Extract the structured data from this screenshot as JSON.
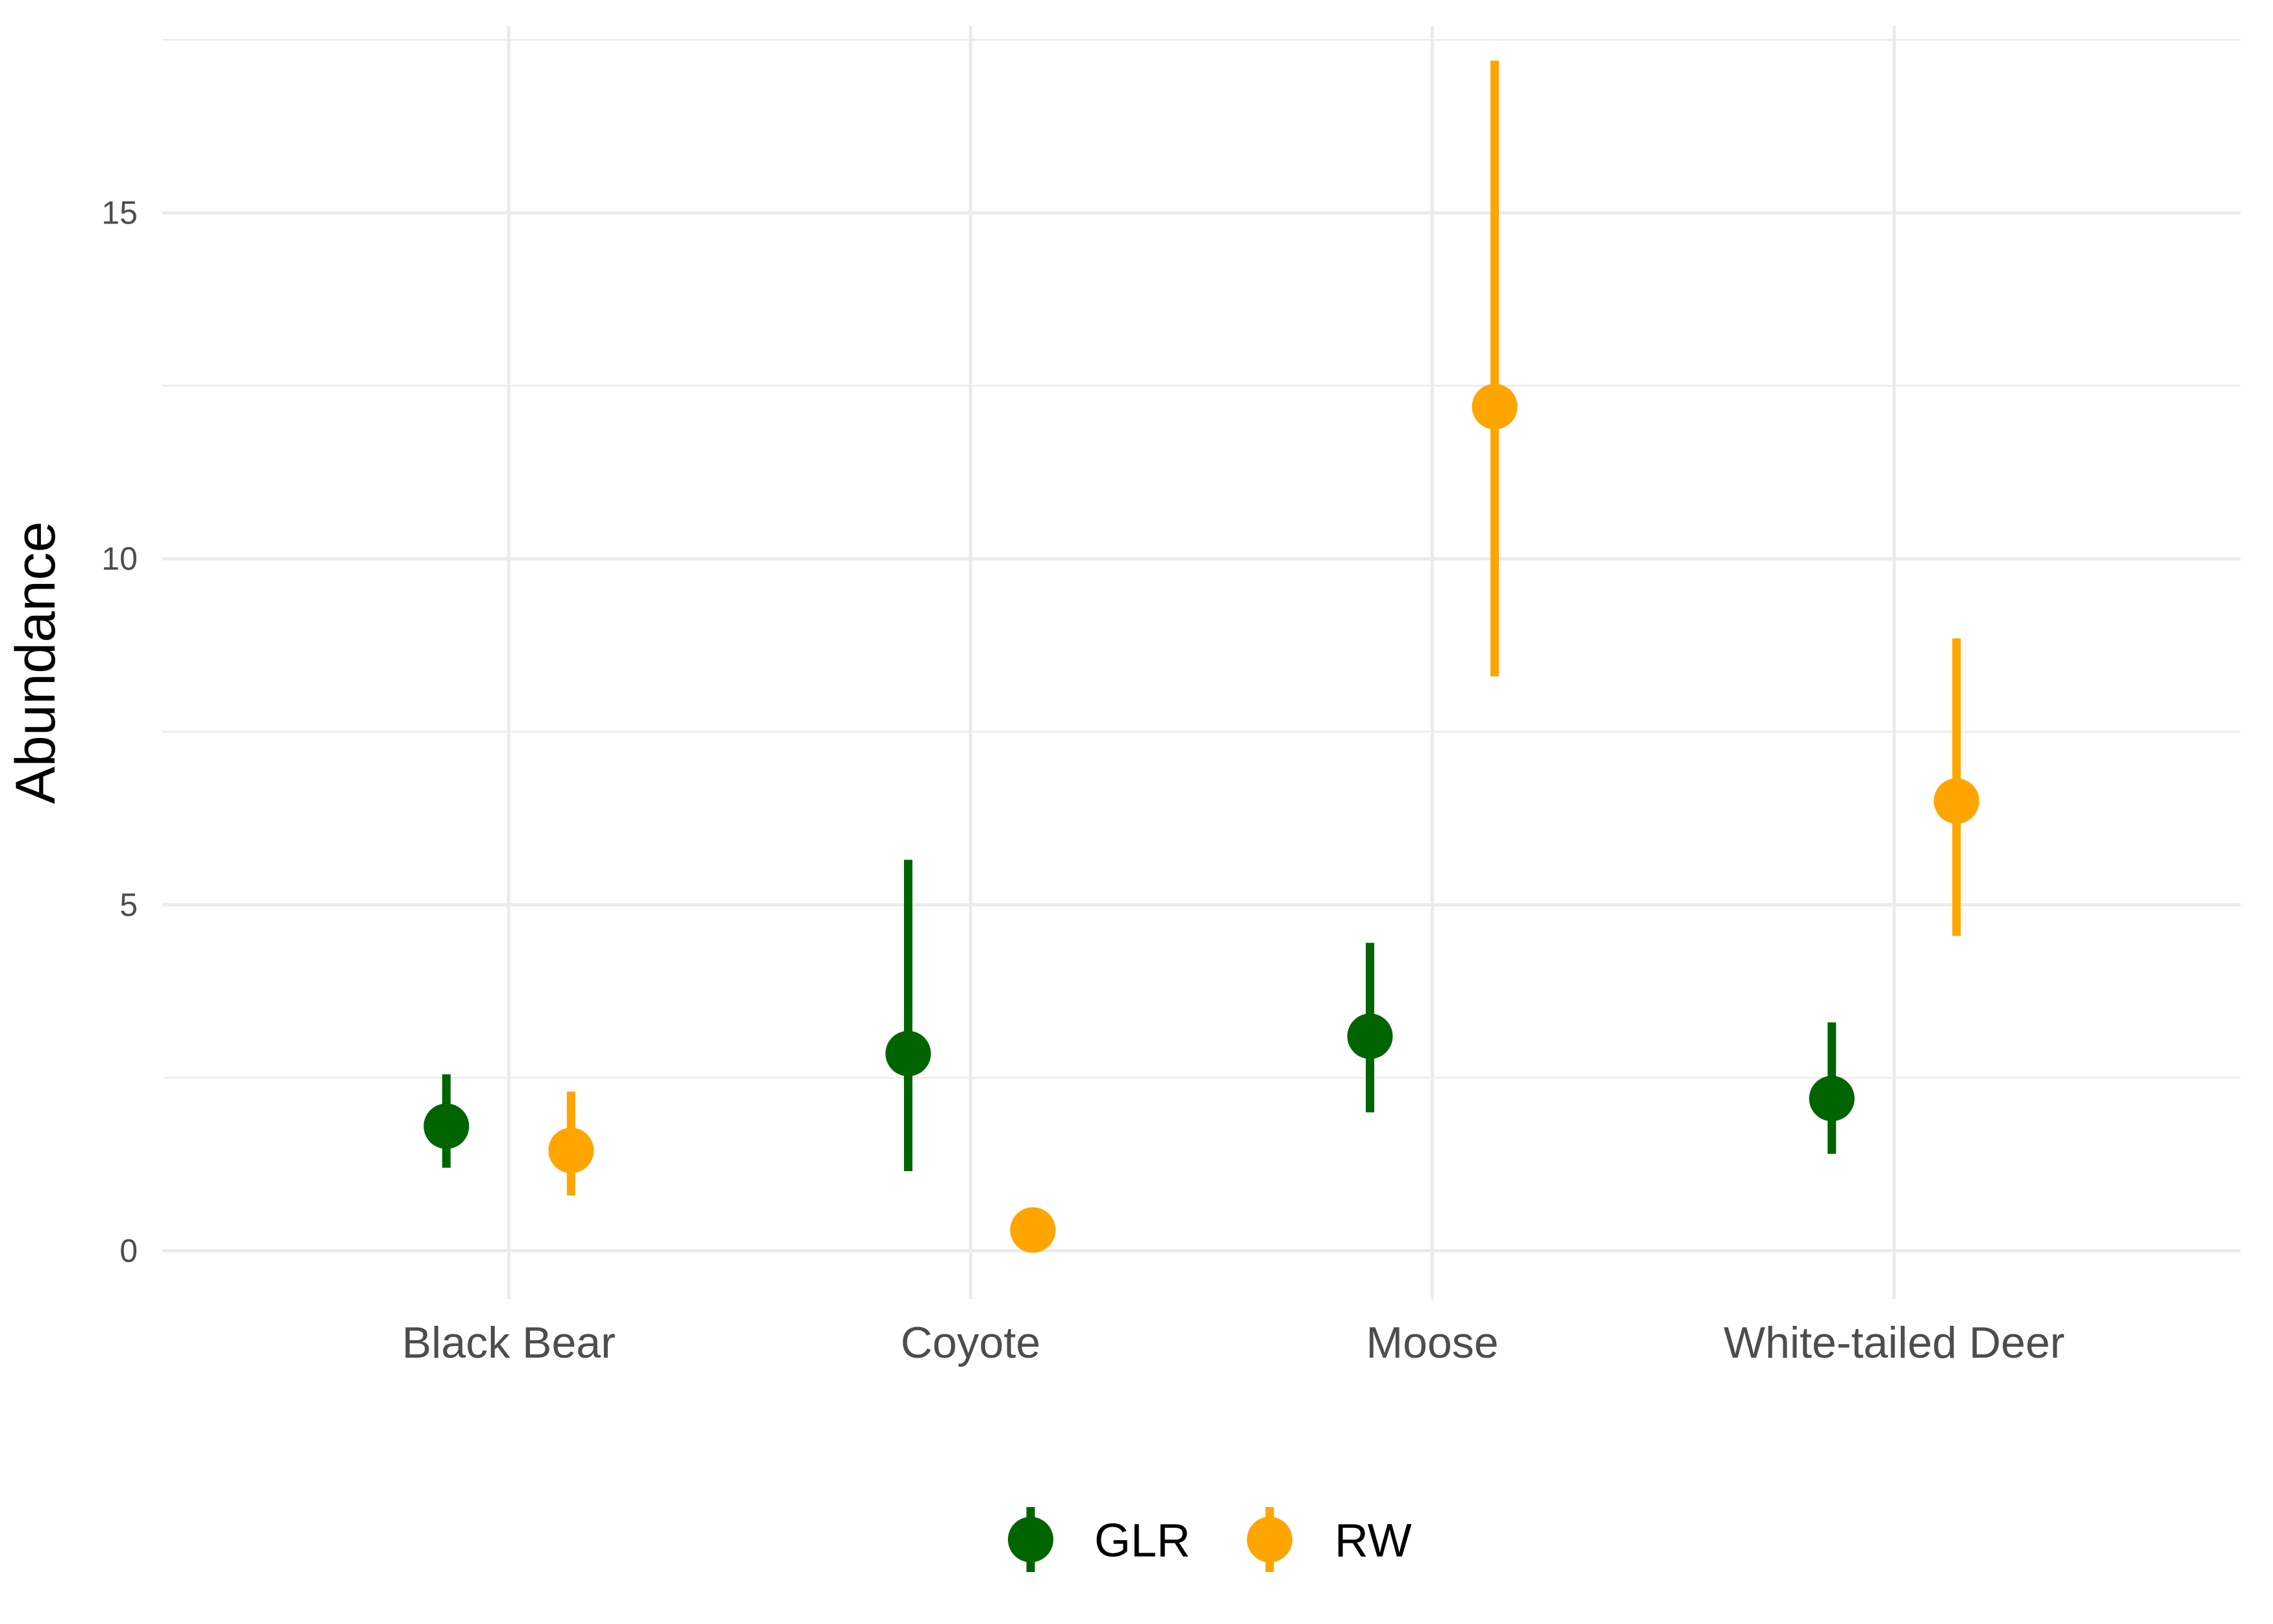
{
  "chart_data": {
    "type": "pointrange",
    "title": "",
    "xlabel": "",
    "ylabel": "Abundance",
    "categories": [
      "Black Bear",
      "Coyote",
      "Moose",
      "White-tailed Deer"
    ],
    "ylim": [
      -0.7,
      17.7
    ],
    "y_ticks": [
      0,
      5,
      10,
      15
    ],
    "y_tick_labels": [
      "0",
      "5",
      "10",
      "15"
    ],
    "y_minor_ticks": [
      2.5,
      7.5,
      12.5,
      17.5
    ],
    "grid": true,
    "legend_position": "bottom",
    "series": [
      {
        "name": "GLR",
        "color": "#006400",
        "values": [
          1.8,
          2.85,
          3.1,
          2.2
        ],
        "lower": [
          1.2,
          1.15,
          2.0,
          1.4
        ],
        "upper": [
          2.55,
          5.65,
          4.45,
          3.3
        ]
      },
      {
        "name": "RW",
        "color": "#FFA500",
        "values": [
          1.45,
          0.3,
          12.2,
          6.5
        ],
        "lower": [
          0.8,
          null,
          8.3,
          4.55
        ],
        "upper": [
          2.3,
          null,
          17.2,
          8.85
        ]
      }
    ]
  }
}
